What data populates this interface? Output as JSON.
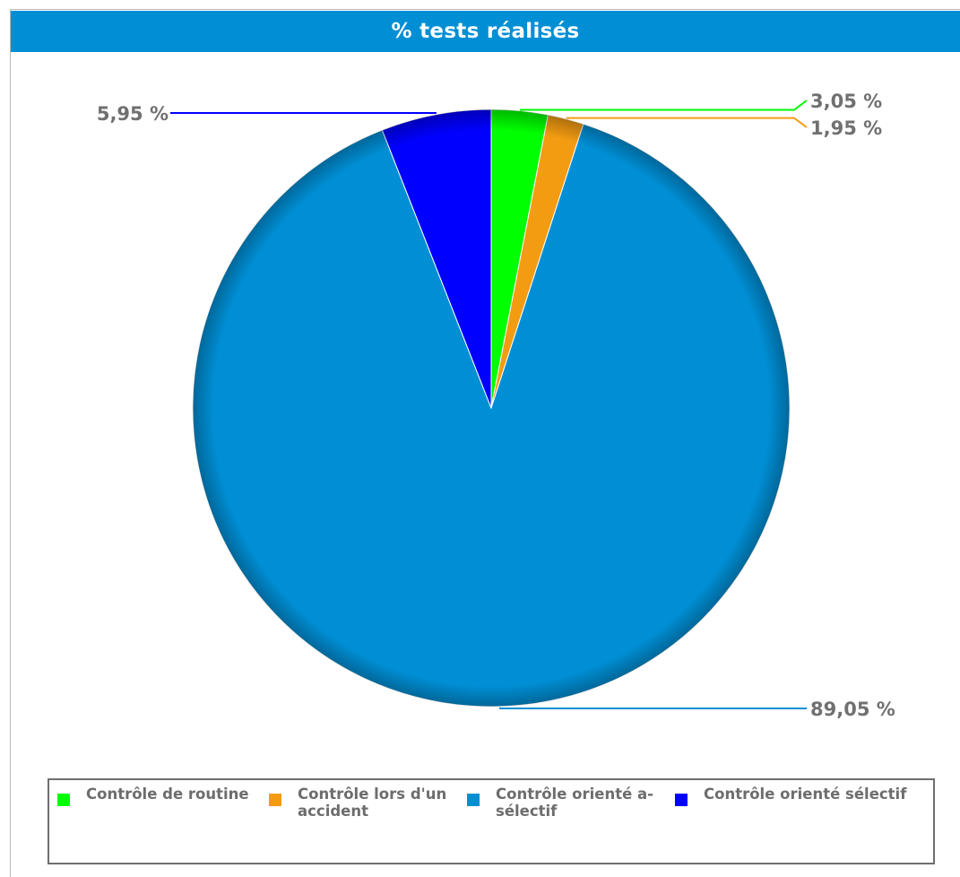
{
  "chart_data": {
    "type": "pie",
    "title": "% tests réalisés",
    "start_angle_deg": 0,
    "slices": [
      {
        "label": "Contrôle de routine",
        "value": 3.05,
        "display": "3,05 %",
        "color": "#00ff00"
      },
      {
        "label": "Contrôle lors d'un accident",
        "value": 1.95,
        "display": "1,95 %",
        "color": "#f39c12"
      },
      {
        "label": "Contrôle orienté a-sélectif",
        "value": 89.05,
        "display": "89,05 %",
        "color": "#008fd5"
      },
      {
        "label": "Contrôle orienté sélectif",
        "value": 5.95,
        "display": "5,95 %",
        "color": "#0000ff"
      }
    ],
    "legend_placement": "bottom",
    "legend": [
      {
        "line1": "Contrôle de routine",
        "line2": ""
      },
      {
        "line1": "Contrôle lors d'un",
        "line2": "accident"
      },
      {
        "line1": "Contrôle orienté a-",
        "line2": "sélectif"
      },
      {
        "line1": "Contrôle orienté sélectif",
        "line2": ""
      }
    ]
  }
}
